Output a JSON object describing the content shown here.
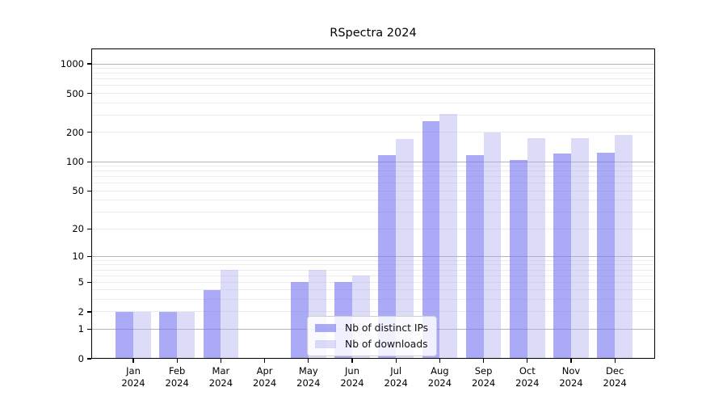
{
  "title": "RSpectra 2024",
  "legend": {
    "items": [
      {
        "label": "Nb of distinct IPs",
        "series": "distinct_ips"
      },
      {
        "label": "Nb of downloads",
        "series": "downloads"
      }
    ]
  },
  "colors": {
    "distinct_ips_fill": "rgba(118,118,240,0.62)",
    "downloads_fill": "rgba(172,172,241,0.42)",
    "grid_major": "#b5b5b5",
    "grid_minor": "#ececec",
    "axis": "#000000"
  },
  "chart_data": {
    "type": "bar",
    "title": "RSpectra 2024",
    "categories": [
      "Jan",
      "Feb",
      "Mar",
      "Apr",
      "May",
      "Jun",
      "Jul",
      "Aug",
      "Sep",
      "Oct",
      "Nov",
      "Dec"
    ],
    "year": "2024",
    "series": [
      {
        "name": "Nb of distinct IPs",
        "values": [
          2,
          2,
          4,
          0,
          5,
          5,
          117,
          258,
          117,
          104,
          122,
          125
        ]
      },
      {
        "name": "Nb of downloads",
        "values": [
          2,
          2,
          7,
          0,
          7,
          6,
          170,
          307,
          200,
          175,
          176,
          190
        ]
      }
    ],
    "yticks": [
      0,
      1,
      2,
      5,
      10,
      20,
      50,
      100,
      200,
      500,
      1000
    ],
    "yscale": "log1p",
    "ylim": [
      0,
      1000
    ],
    "grid": true,
    "legend_position": "inside-bottom-center"
  }
}
